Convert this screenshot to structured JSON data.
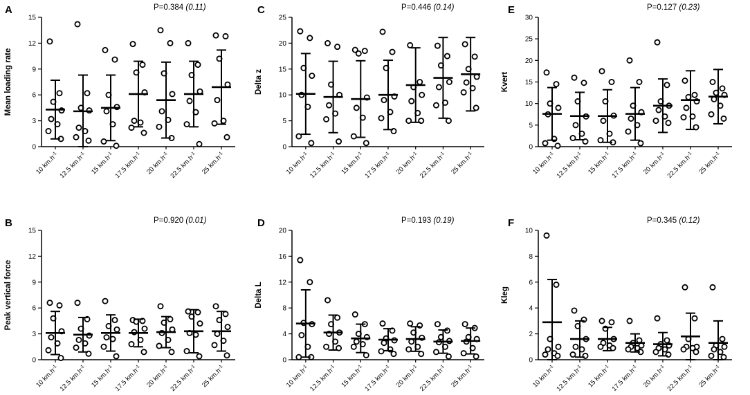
{
  "chart_data": [
    {
      "type": "scatter",
      "panel": "A",
      "ylabel": "Mean loading rate",
      "p_value": "P=0.384",
      "effect_size": "(0.11)",
      "ylim": [
        0,
        15
      ],
      "yticks": [
        "0",
        "3",
        "6",
        "9",
        "12",
        "15"
      ],
      "categories": [
        "10 km.h⁻¹",
        "12.5 km.h⁻¹",
        "15 km.h⁻¹",
        "17.5 km.h⁻¹",
        "20 km.h⁻¹",
        "22.5 km.h⁻¹",
        "25 km.h⁻¹"
      ],
      "points": [
        [
          12.2,
          6.2,
          5.2,
          4.2,
          3.2,
          2.6,
          1.8,
          0.9
        ],
        [
          14.2,
          6.2,
          4.5,
          4.2,
          2.2,
          1.8,
          1.1,
          0.7
        ],
        [
          11.2,
          10.1,
          6.0,
          4.6,
          4.1,
          2.6,
          0.6,
          0.1
        ],
        [
          11.9,
          9.5,
          8.6,
          6.3,
          3.0,
          2.8,
          2.2,
          1.6
        ],
        [
          13.5,
          12.0,
          8.5,
          6.1,
          4.1,
          3.1,
          2.3,
          1.0
        ],
        [
          12.0,
          9.5,
          8.3,
          6.4,
          5.3,
          4.0,
          2.6,
          0.3
        ],
        [
          12.9,
          12.8,
          10.2,
          7.2,
          5.4,
          3.0,
          2.7,
          1.1
        ]
      ],
      "mean": [
        4.3,
        4.1,
        4.5,
        6.1,
        5.4,
        6.1,
        6.9
      ],
      "sd": [
        3.4,
        4.2,
        3.8,
        3.8,
        4.4,
        3.8,
        4.3
      ]
    },
    {
      "type": "scatter",
      "panel": "C",
      "ylabel": "Delta z",
      "p_value": "P=0.446",
      "effect_size": "(0.14)",
      "ylim": [
        0,
        25
      ],
      "yticks": [
        "0",
        "5",
        "10",
        "15",
        "20",
        "25"
      ],
      "categories": [
        "10 km.h⁻¹",
        "12.5 km.h⁻¹",
        "15 km.h⁻¹",
        "17.5 km.h⁻¹",
        "20 km.h⁻¹",
        "22.5 km.h⁻¹",
        "25 km.h⁻¹"
      ],
      "points": [
        [
          22.3,
          21.0,
          15.2,
          13.7,
          10.0,
          7.7,
          2.0,
          0.7
        ],
        [
          20.0,
          19.3,
          12.0,
          10.0,
          8.0,
          6.4,
          5.3,
          1.0
        ],
        [
          18.7,
          18.5,
          18.0,
          9.5,
          7.5,
          5.6,
          2.0,
          0.7
        ],
        [
          22.2,
          18.3,
          15.2,
          9.7,
          9.0,
          6.7,
          5.5,
          3.0
        ],
        [
          19.6,
          12.5,
          11.5,
          10.0,
          8.8,
          6.5,
          5.0,
          5.0
        ],
        [
          19.5,
          17.5,
          15.7,
          12.5,
          11.5,
          8.5,
          8.0,
          5.0
        ],
        [
          19.8,
          17.4,
          15.0,
          13.5,
          12.4,
          11.3,
          10.5,
          7.5
        ]
      ],
      "mean": [
        10.2,
        9.6,
        9.2,
        10.0,
        11.9,
        13.3,
        14.0
      ],
      "sd": [
        7.8,
        6.9,
        7.4,
        6.7,
        7.2,
        7.8,
        7.1
      ]
    },
    {
      "type": "scatter",
      "panel": "E",
      "ylabel": "Kvert",
      "p_value": "P=0.127",
      "effect_size": "(0.23)",
      "ylim": [
        0,
        30
      ],
      "yticks": [
        "0",
        "5",
        "10",
        "15",
        "20",
        "25",
        "30"
      ],
      "categories": [
        "10 km.h⁻¹",
        "12.5 km.h⁻¹",
        "15 km.h⁻¹",
        "17.5 km.h⁻¹",
        "20 km.h⁻¹",
        "22.5 km.h⁻¹",
        "25 km.h⁻¹"
      ],
      "points": [
        [
          17.2,
          14.5,
          10.0,
          9.0,
          7.5,
          1.8,
          0.8,
          0.2
        ],
        [
          16.0,
          14.8,
          10.5,
          7.0,
          5.0,
          3.0,
          2.0,
          1.2
        ],
        [
          17.5,
          15.0,
          10.5,
          7.2,
          6.0,
          3.0,
          1.5,
          1.0
        ],
        [
          20.0,
          15.0,
          9.5,
          8.0,
          6.5,
          5.0,
          3.5,
          0.8
        ],
        [
          24.2,
          14.3,
          10.5,
          9.5,
          8.5,
          7.0,
          6.0,
          5.5
        ],
        [
          15.3,
          12.0,
          11.5,
          10.5,
          9.0,
          7.0,
          6.8,
          4.5
        ],
        [
          15.0,
          13.5,
          12.5,
          12.0,
          11.0,
          9.5,
          7.5,
          6.5
        ]
      ],
      "mean": [
        7.6,
        7.1,
        7.1,
        7.6,
        9.5,
        10.8,
        11.6
      ],
      "sd": [
        6.1,
        5.5,
        6.1,
        6.1,
        6.2,
        6.8,
        6.3
      ]
    },
    {
      "type": "scatter",
      "panel": "B",
      "ylabel": "Peak vertical force",
      "p_value": "P=0.920",
      "effect_size": "(0.01)",
      "ylim": [
        0,
        15
      ],
      "yticks": [
        "0",
        "3",
        "6",
        "9",
        "12",
        "15"
      ],
      "categories": [
        "10 km.h⁻¹",
        "12.5 km.h⁻¹",
        "15 km.h⁻¹",
        "17.5 km.h⁻¹",
        "20 km.h⁻¹",
        "22.5 km.h⁻¹",
        "25 km.h⁻¹"
      ],
      "points": [
        [
          6.6,
          6.3,
          4.8,
          3.3,
          2.6,
          1.9,
          1.1,
          0.2
        ],
        [
          6.6,
          4.7,
          3.6,
          2.8,
          2.3,
          1.9,
          1.4,
          0.7
        ],
        [
          6.8,
          4.6,
          3.9,
          3.5,
          2.6,
          2.4,
          1.5,
          0.4
        ],
        [
          4.6,
          4.5,
          4.4,
          3.6,
          3.2,
          2.3,
          1.8,
          0.9
        ],
        [
          6.2,
          4.7,
          4.3,
          3.5,
          3.1,
          2.3,
          1.6,
          0.9
        ],
        [
          5.6,
          5.5,
          5.0,
          4.2,
          3.1,
          2.9,
          1.0,
          0.4
        ],
        [
          6.2,
          5.3,
          4.6,
          3.8,
          3.0,
          2.2,
          1.7,
          0.5
        ]
      ],
      "mean": [
        3.1,
        2.9,
        3.1,
        3.1,
        3.2,
        3.3,
        3.3
      ],
      "sd": [
        2.5,
        2.0,
        2.1,
        1.6,
        1.8,
        2.5,
        2.3
      ]
    },
    {
      "type": "scatter",
      "panel": "D",
      "ylabel": "Delta L",
      "p_value": "P=0.193",
      "effect_size": "(0.19)",
      "ylim": [
        0,
        20
      ],
      "yticks": [
        "0",
        "4",
        "8",
        "12",
        "16",
        "20"
      ],
      "categories": [
        "10 km.h⁻¹",
        "12.5 km.h⁻¹",
        "15 km.h⁻¹",
        "17.5 km.h⁻¹",
        "20 km.h⁻¹",
        "22.5 km.h⁻¹",
        "25 km.h⁻¹"
      ],
      "points": [
        [
          15.4,
          12.0,
          5.7,
          5.5,
          3.8,
          2.0,
          0.4,
          0.4
        ],
        [
          9.2,
          6.5,
          5.5,
          4.2,
          4.0,
          2.8,
          2.0,
          1.8
        ],
        [
          7.0,
          5.5,
          4.0,
          3.5,
          2.8,
          2.4,
          2.0,
          0.7
        ],
        [
          5.6,
          4.5,
          3.3,
          3.0,
          2.6,
          1.6,
          1.3,
          0.9
        ],
        [
          5.6,
          5.3,
          4.2,
          3.4,
          2.8,
          2.0,
          1.6,
          0.9
        ],
        [
          5.5,
          4.5,
          3.5,
          2.9,
          2.7,
          2.0,
          1.2,
          0.5
        ],
        [
          5.5,
          4.9,
          3.5,
          3.2,
          2.8,
          1.8,
          1.0,
          0.5
        ]
      ],
      "mean": [
        5.6,
        4.2,
        3.3,
        3.1,
        3.2,
        2.8,
        2.9
      ],
      "sd": [
        5.2,
        2.7,
        2.2,
        1.7,
        1.9,
        1.8,
        2.0
      ]
    },
    {
      "type": "scatter",
      "panel": "F",
      "ylabel": "Kleg",
      "p_value": "P=0.345",
      "effect_size": "(0.12)",
      "ylim": [
        0,
        10
      ],
      "yticks": [
        "0",
        "2",
        "4",
        "6",
        "8",
        "10"
      ],
      "categories": [
        "10 km.h⁻¹",
        "12.5 km.h⁻¹",
        "15 km.h⁻¹",
        "17.5 km.h⁻¹",
        "20 km.h⁻¹",
        "22.5 km.h⁻¹",
        "25 km.h⁻¹"
      ],
      "points": [
        [
          9.6,
          5.8,
          1.6,
          1.0,
          0.8,
          0.5,
          0.4,
          0.3
        ],
        [
          3.8,
          3.1,
          2.6,
          1.6,
          1.0,
          0.8,
          0.4,
          0.3
        ],
        [
          3.0,
          2.9,
          2.4,
          1.6,
          1.3,
          1.1,
          1.0,
          0.9
        ],
        [
          3.0,
          1.5,
          1.3,
          1.1,
          1.0,
          0.9,
          0.8,
          0.6
        ],
        [
          3.2,
          1.5,
          1.2,
          1.1,
          0.9,
          0.8,
          0.6,
          0.4
        ],
        [
          5.6,
          3.2,
          1.6,
          1.0,
          1.0,
          0.9,
          0.8,
          0.6
        ],
        [
          5.6,
          1.6,
          1.1,
          1.0,
          0.8,
          0.6,
          0.3,
          0.2
        ]
      ],
      "mean": [
        2.9,
        1.6,
        1.6,
        1.3,
        1.2,
        1.8,
        1.3
      ],
      "sd": [
        3.3,
        1.4,
        0.9,
        0.7,
        0.9,
        1.8,
        1.7
      ]
    }
  ]
}
